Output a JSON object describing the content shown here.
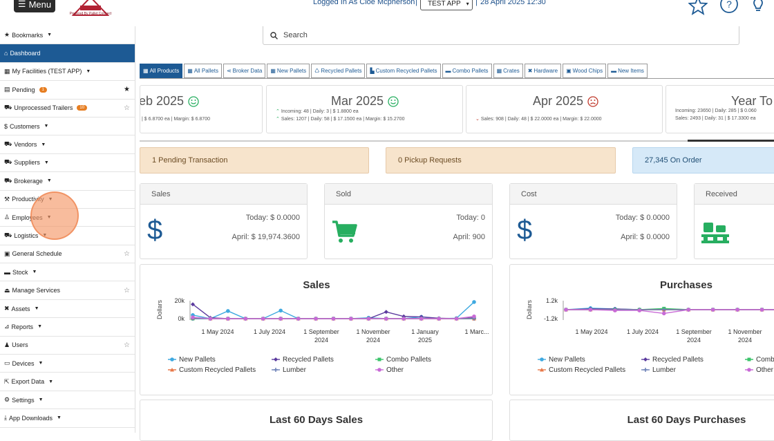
{
  "header": {
    "menu_label": "Menu",
    "logo_text": "Powered By Pallet Connect",
    "logged_in": "Logged In As Cloe Mcpherson",
    "app_select": "TEST APP",
    "datetime": "28 April 2025 12:30"
  },
  "sidebar": {
    "items": [
      {
        "label": "Bookmarks",
        "caret": true,
        "icon": "star-icon"
      },
      {
        "label": "Dashboard",
        "active": true,
        "icon": "home-icon"
      },
      {
        "label": "My Facilities (TEST APP)",
        "caret": true,
        "icon": "building-icon"
      },
      {
        "label": "Pending",
        "badge": "1",
        "star": "filled",
        "icon": "file-icon"
      },
      {
        "label": "Unprocessed Trailers",
        "badge": "10",
        "star": "outline",
        "icon": "truck-icon"
      },
      {
        "label": "Customers",
        "caret": true,
        "icon": "dollar-icon"
      },
      {
        "label": "Vendors",
        "caret": true,
        "icon": "truck-icon"
      },
      {
        "label": "Suppliers",
        "caret": true,
        "icon": "truck-icon"
      },
      {
        "label": "Brokerage",
        "caret": true,
        "icon": "truck-icon"
      },
      {
        "label": "Productivity",
        "caret": true,
        "icon": "hammer-icon"
      },
      {
        "label": "Employees",
        "caret": true,
        "icon": "person-icon"
      },
      {
        "label": "Logistics",
        "caret": true,
        "icon": "truck-icon"
      },
      {
        "label": "General Schedule",
        "star": "outline",
        "icon": "calendar-icon"
      },
      {
        "label": "Stock",
        "caret": true,
        "icon": "pallet-icon"
      },
      {
        "label": "Manage Services",
        "star": "outline",
        "icon": "eject-icon"
      },
      {
        "label": "Assets",
        "caret": true,
        "icon": "tools-icon"
      },
      {
        "label": "Reports",
        "caret": true,
        "icon": "chart-icon"
      },
      {
        "label": "Users",
        "star": "outline",
        "icon": "users-icon"
      },
      {
        "label": "Devices",
        "caret": true,
        "icon": "monitor-icon"
      },
      {
        "label": "Export Data",
        "caret": true,
        "icon": "export-icon"
      },
      {
        "label": "Settings",
        "caret": true,
        "icon": "gears-icon"
      },
      {
        "label": "App Downloads",
        "caret": true,
        "icon": "download-icon"
      }
    ]
  },
  "search": {
    "placeholder": "Search"
  },
  "tabs": [
    {
      "label": "All Products",
      "active": true
    },
    {
      "label": "All Pallets"
    },
    {
      "label": "Broker Data"
    },
    {
      "label": "New Pallets"
    },
    {
      "label": "Recycled Pallets"
    },
    {
      "label": "Custom Recycled Pallets"
    },
    {
      "label": "Combo Pallets"
    },
    {
      "label": "Crates"
    },
    {
      "label": "Hardware"
    },
    {
      "label": "Wood Chips"
    },
    {
      "label": "New Items"
    }
  ],
  "months": [
    {
      "title": "eb 2025",
      "line1": "| $ 6.8700 ea | Margin: $ 6.8700",
      "line2": "",
      "face": "smile"
    },
    {
      "title": "Mar 2025",
      "line1": "Incoming: 48 | Daily: 3 | $ 1.8800 ea",
      "line2": "Sales: 1207 | Daily: 58 | $ 17.1500 ea | Margin: $ 15.2700",
      "face": "smile"
    },
    {
      "title": "Apr 2025",
      "line1": "Sales: 908 | Daily: 48 | $ 22.0000 ea | Margin: $ 22.0000",
      "line2": "",
      "face": "frown"
    },
    {
      "title": "Year To",
      "line1": "Incoming: 23650 | Daily: 285 | $ 0.060",
      "line2": "Sales: 2493 | Daily: 31 | $ 17.3300 ea"
    }
  ],
  "alerts": {
    "pending": "1 Pending Transaction",
    "pickup": "0 Pickup Requests",
    "order": "27,345 On Order"
  },
  "stats": {
    "sales": {
      "title": "Sales",
      "today": "Today: $ 0.0000",
      "month": "April: $ 19,974.3600"
    },
    "sold": {
      "title": "Sold",
      "today": "Today: 0",
      "month": "April: 900"
    },
    "cost": {
      "title": "Cost",
      "today": "Today: $ 0.0000",
      "month": "April: $ 0.0000"
    },
    "received": {
      "title": "Received"
    }
  },
  "chart_data": [
    {
      "type": "line",
      "title": "Sales",
      "ylabel": "Dollars",
      "y_ticks": [
        "20k",
        "0k"
      ],
      "ylim": [
        0,
        20000
      ],
      "x_ticks": [
        "1 May 2024",
        "1 July 2024",
        "1 September 2024",
        "1 November 2024",
        "1 January 2025",
        "1 Marc..."
      ],
      "series": [
        {
          "name": "New Pallets",
          "color": "#3fa9e0",
          "marker": "circle",
          "values": [
            4000,
            0,
            8500,
            0,
            0,
            9000,
            0,
            0,
            0,
            0,
            1000,
            0,
            0,
            2000,
            0,
            500,
            18500
          ]
        },
        {
          "name": "Recycled Pallets",
          "color": "#5b3a9e",
          "marker": "diamond",
          "values": [
            16000,
            1000,
            0,
            0,
            0,
            0,
            0,
            0,
            0,
            0,
            0,
            7500,
            2500,
            2000,
            500,
            0,
            1000
          ]
        },
        {
          "name": "Combo Pallets",
          "color": "#3cc46b",
          "marker": "square",
          "values": [
            0,
            0,
            0,
            0,
            0,
            0,
            0,
            0,
            0,
            0,
            0,
            0,
            0,
            0,
            0,
            0,
            0
          ]
        },
        {
          "name": "Custom Recycled Pallets",
          "color": "#e8794a",
          "marker": "triangle",
          "values": [
            1000,
            0,
            0,
            0,
            0,
            0,
            0,
            0,
            0,
            0,
            0,
            0,
            0,
            0,
            0,
            0,
            0
          ]
        },
        {
          "name": "Lumber",
          "color": "#6a7fb5",
          "marker": "cross",
          "values": [
            0,
            0,
            0,
            0,
            0,
            0,
            0,
            0,
            0,
            0,
            0,
            0,
            0,
            0,
            0,
            0,
            0
          ]
        },
        {
          "name": "Other",
          "color": "#c86ad6",
          "marker": "circle",
          "values": [
            1500,
            0,
            0,
            0,
            0,
            0,
            0,
            0,
            0,
            0,
            0,
            0,
            0,
            0,
            0,
            0,
            2500
          ]
        }
      ]
    },
    {
      "type": "line",
      "title": "Purchases",
      "ylabel": "Dollars",
      "y_ticks": [
        "1.2k",
        "-1.2k"
      ],
      "ylim": [
        -1200,
        1200
      ],
      "x_ticks": [
        "1 May 2024",
        "1 July 2024",
        "1 September 2024",
        "1 November 2024"
      ],
      "series": [
        {
          "name": "New Pallets",
          "color": "#3fa9e0",
          "marker": "circle",
          "values": [
            0,
            200,
            100,
            0,
            100,
            0,
            0,
            0,
            0,
            0
          ]
        },
        {
          "name": "Recycled Pallets",
          "color": "#5b3a9e",
          "marker": "diamond",
          "values": [
            0,
            100,
            100,
            0,
            0,
            0,
            0,
            0,
            0,
            0
          ]
        },
        {
          "name": "Combo Pallets",
          "color": "#3cc46b",
          "marker": "square",
          "values": [
            0,
            0,
            0,
            0,
            150,
            0,
            0,
            0,
            0,
            0
          ]
        },
        {
          "name": "Custom Recycled Pallets",
          "color": "#e8794a",
          "marker": "triangle",
          "values": [
            0,
            0,
            0,
            0,
            0,
            0,
            0,
            0,
            0,
            0
          ]
        },
        {
          "name": "Lumber",
          "color": "#6a7fb5",
          "marker": "cross",
          "values": [
            0,
            0,
            0,
            0,
            0,
            0,
            0,
            0,
            0,
            0
          ]
        },
        {
          "name": "Other",
          "color": "#c86ad6",
          "marker": "circle",
          "values": [
            0,
            0,
            -100,
            -100,
            -500,
            0,
            0,
            0,
            0,
            0
          ]
        }
      ]
    }
  ],
  "bottom": {
    "left_title": "Last 60 Days Sales",
    "right_title": "Last 60 Days Purchases"
  }
}
